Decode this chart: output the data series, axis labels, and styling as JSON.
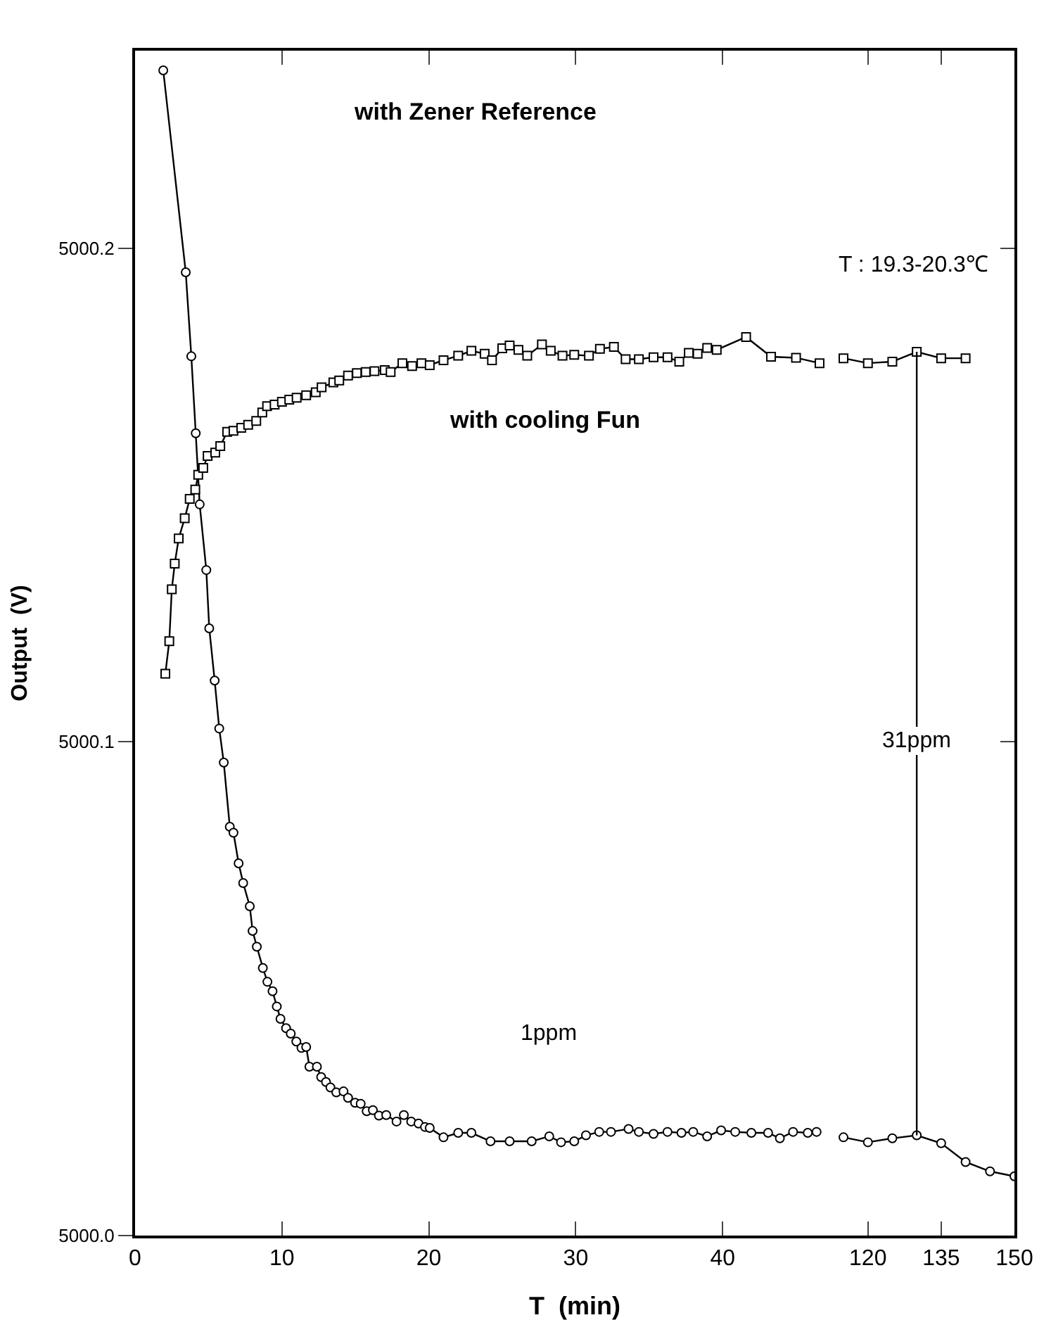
{
  "chart_data": [
    {
      "type": "line",
      "title": "with Zener Reference",
      "xlabel": "T  (min)",
      "ylabel": "Output  (V)",
      "annotations": [
        "T : 19.3-20.3℃",
        "1ppm"
      ],
      "xlim": [
        0,
        47.4
      ],
      "xticks": [
        0,
        10,
        20,
        30,
        40
      ],
      "ylim": [
        5000.0,
        5000.24
      ],
      "yticks": [
        {
          "value": 5000.0,
          "label": "5000.0"
        },
        5000.1,
        5000.2
      ],
      "series": [
        {
          "color": "#000000",
          "marker": "circle",
          "x": [
            1.92,
            3.45,
            3.83,
            4.13,
            4.4,
            4.85,
            5.05,
            5.42,
            5.73,
            6.04,
            6.45,
            6.7,
            7.05,
            7.36,
            7.81,
            8.0,
            8.29,
            8.7,
            9.01,
            9.36,
            9.65,
            9.9,
            10.28,
            10.6,
            10.98,
            11.33,
            11.65,
            11.87,
            12.38,
            12.67,
            13.0,
            13.3,
            13.7,
            14.19,
            14.5,
            14.98,
            15.36,
            15.77,
            16.19,
            16.6,
            17.1,
            17.8,
            18.3,
            18.8,
            19.3,
            19.74,
            20.06,
            21.0,
            22.0,
            22.9,
            24.2,
            25.5,
            27.0,
            28.2,
            29.0,
            29.9,
            30.7,
            31.6,
            32.4,
            33.6,
            34.3,
            35.3,
            36.25,
            37.2,
            38.0,
            38.95,
            39.9,
            40.86,
            41.96,
            43.1,
            43.9,
            44.8,
            45.8,
            46.4
          ],
          "values": [
            5000.236,
            5000.1951,
            5000.1781,
            5000.1625,
            5000.1481,
            5000.1348,
            5000.123,
            5000.1124,
            5000.1027,
            5000.0958,
            5000.0828,
            5000.0816,
            5000.0754,
            5000.0714,
            5000.0667,
            5000.0617,
            5000.0585,
            5000.0542,
            5000.0514,
            5000.0495,
            5000.0464,
            5000.0439,
            5000.042,
            5000.0409,
            5000.0393,
            5000.038,
            5000.0382,
            5000.0342,
            5000.0342,
            5000.0321,
            5000.0311,
            5000.03,
            5000.029,
            5000.0292,
            5000.0279,
            5000.0269,
            5000.0267,
            5000.0252,
            5000.0254,
            5000.0243,
            5000.0244,
            5000.0231,
            5000.0244,
            5000.0231,
            5000.0227,
            5000.022,
            5000.0218,
            5000.0199,
            5000.0208,
            5000.0208,
            5000.0191,
            5000.0191,
            5000.0191,
            5000.0201,
            5000.0189,
            5000.0191,
            5000.0203,
            5000.021,
            5000.021,
            5000.0216,
            5000.021,
            5000.0206,
            5000.021,
            5000.0208,
            5000.021,
            5000.0201,
            5000.0213,
            5000.021,
            5000.0208,
            5000.0208,
            5000.0197,
            5000.021,
            5000.0208,
            5000.021
          ]
        },
        {
          "name": "with cooling Fun",
          "color": "#000000",
          "marker": "square",
          "x": [
            2.06,
            2.33,
            2.5,
            2.7,
            2.97,
            3.38,
            3.72,
            4.1,
            4.3,
            4.64,
            4.94,
            5.46,
            5.8,
            6.27,
            6.7,
            7.23,
            7.7,
            8.25,
            8.66,
            8.99,
            9.5,
            10.0,
            10.5,
            11.0,
            11.65,
            12.3,
            12.7,
            13.5,
            13.9,
            14.5,
            15.1,
            15.7,
            16.3,
            17.0,
            17.4,
            18.2,
            18.86,
            19.5,
            20.06,
            21.0,
            22.0,
            22.9,
            23.8,
            24.3,
            25.0,
            25.5,
            26.1,
            26.7,
            27.7,
            28.3,
            29.1,
            29.9,
            30.9,
            31.65,
            32.6,
            33.4,
            34.3,
            35.3,
            36.25,
            37.05,
            37.7,
            38.3,
            38.95,
            39.6,
            41.6,
            43.3,
            45.0,
            46.6
          ],
          "values": [
            5000.1138,
            5000.1204,
            5000.1309,
            5000.1361,
            5000.1412,
            5000.1453,
            5000.1492,
            5000.1511,
            5000.1541,
            5000.1555,
            5000.1579,
            5000.1586,
            5000.1599,
            5000.1628,
            5000.163,
            5000.1636,
            5000.1642,
            5000.165,
            5000.1667,
            5000.168,
            5000.1683,
            5000.1689,
            5000.1693,
            5000.1697,
            5000.1702,
            5000.1708,
            5000.1718,
            5000.1728,
            5000.1732,
            5000.1742,
            5000.1747,
            5000.1749,
            5000.1751,
            5000.1753,
            5000.1749,
            5000.1767,
            5000.1761,
            5000.1767,
            5000.1763,
            5000.1773,
            5000.1782,
            5000.1792,
            5000.1786,
            5000.1773,
            5000.1797,
            5000.1803,
            5000.1794,
            5000.1782,
            5000.1805,
            5000.1792,
            5000.1782,
            5000.1784,
            5000.1782,
            5000.1796,
            5000.18,
            5000.1775,
            5000.1775,
            5000.1779,
            5000.1779,
            5000.177,
            5000.1788,
            5000.1786,
            5000.1798,
            5000.1794,
            5000.182,
            5000.178,
            5000.1778,
            5000.1767
          ]
        }
      ]
    },
    {
      "type": "line",
      "tick_labels": "x",
      "annotations": [
        "31ppm"
      ],
      "xlim": [
        112.5,
        150
      ],
      "xticks": [
        120,
        135,
        150
      ],
      "ylim": [
        5000.0,
        5000.24
      ],
      "yticks": [
        {
          "value": 5000.0,
          "label": null
        },
        {
          "value": 5000.1,
          "label": null
        },
        {
          "value": 5000.2,
          "label": null
        }
      ],
      "series": [
        {
          "color": "#000000",
          "marker": "circle",
          "x": [
            115,
            120,
            125,
            130,
            135,
            140,
            145,
            150
          ],
          "values": [
            5000.0199,
            5000.0189,
            5000.0197,
            5000.0203,
            5000.0187,
            5000.0149,
            5000.013,
            5000.012
          ]
        },
        {
          "color": "#000000",
          "marker": "square",
          "x": [
            115,
            120,
            125,
            130,
            135,
            140
          ],
          "values": [
            5000.1777,
            5000.1767,
            5000.177,
            5000.179,
            5000.1777,
            5000.1777
          ]
        },
        {
          "color": "#000000",
          "marker": "none",
          "x": [
            130,
            130
          ],
          "values": [
            5000.0203,
            5000.179
          ]
        }
      ]
    }
  ]
}
